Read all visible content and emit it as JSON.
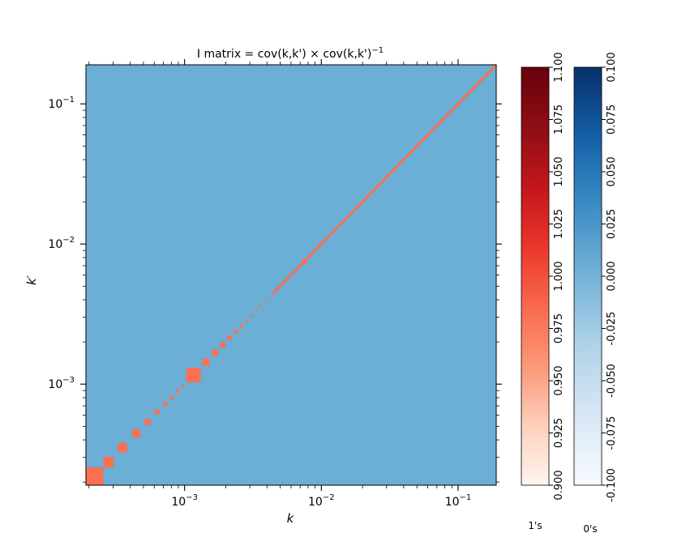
{
  "chart_data": {
    "type": "heatmap",
    "title": "I matrix = cov(k,k') × cov(k,k')",
    "title_superscript": "−1",
    "xlabel": "k",
    "ylabel": "k′",
    "x_scale": "log",
    "y_scale": "log",
    "xlim": [
      0.00019,
      0.19
    ],
    "ylim": [
      0.00019,
      0.19
    ],
    "x_tick_labels": [
      {
        "value": 0.001,
        "base": "10",
        "exp": "−3"
      },
      {
        "value": 0.01,
        "base": "10",
        "exp": "−2"
      },
      {
        "value": 0.1,
        "base": "10",
        "exp": "−1"
      }
    ],
    "y_tick_labels": [
      {
        "value": 0.001,
        "base": "10",
        "exp": "−3"
      },
      {
        "value": 0.01,
        "base": "10",
        "exp": "−2"
      },
      {
        "value": 0.1,
        "base": "10",
        "exp": "−1"
      }
    ],
    "background_color": "#6baed6",
    "diagonal_color": "#fb7050",
    "diagonal_bins": [
      [
        0.00019,
        0.000255
      ],
      [
        0.000255,
        0.000303
      ],
      [
        0.000325,
        0.00038
      ],
      [
        0.000415,
        0.000475
      ],
      [
        0.00051,
        0.000565
      ],
      [
        0.000605,
        0.000655
      ],
      [
        0.000695,
        0.000745
      ],
      [
        0.00078,
        0.00083
      ],
      [
        0.000865,
        0.000915
      ],
      [
        0.00095,
        0.00099
      ],
      [
        0.00103,
        0.00131
      ],
      [
        0.00135,
        0.00152
      ],
      [
        0.00159,
        0.00176
      ],
      [
        0.00182,
        0.00199
      ],
      [
        0.00206,
        0.00222
      ],
      [
        0.0023,
        0.00245
      ],
      [
        0.00253,
        0.00267
      ],
      [
        0.00277,
        0.0029
      ],
      [
        0.00301,
        0.00314
      ],
      [
        0.00327,
        0.00339
      ],
      [
        0.00352,
        0.00364
      ],
      [
        0.00378,
        0.00389
      ],
      [
        0.00405,
        0.00415
      ],
      [
        0.00435,
        0.00445
      ],
      [
        0.0072,
        0.0078
      ],
      [
        0.0095,
        0.0101
      ]
    ],
    "colorbars": [
      {
        "label": "1's",
        "cmap": "Reds",
        "vmin": 0.9,
        "vmax": 1.1,
        "tick_values": [
          0.9,
          0.925,
          0.95,
          0.975,
          1.0,
          1.025,
          1.05,
          1.075,
          1.1
        ],
        "tick_labels": [
          "0.900",
          "0.925",
          "0.950",
          "0.975",
          "1.000",
          "1.025",
          "1.050",
          "1.075",
          "1.100"
        ],
        "colors": [
          "#fff5f0",
          "#fdd0bc",
          "#fc9777",
          "#f9694c",
          "#ea362a",
          "#c2161b",
          "#8e0d14",
          "#67000d"
        ]
      },
      {
        "label": "0's",
        "cmap": "Blues",
        "vmin": -0.1,
        "vmax": 0.1,
        "tick_values": [
          -0.1,
          -0.075,
          -0.05,
          -0.025,
          0.0,
          0.025,
          0.05,
          0.075,
          0.1
        ],
        "tick_labels": [
          "-0.100",
          "-0.075",
          "-0.050",
          "-0.025",
          "0.000",
          "0.025",
          "0.050",
          "0.075",
          "0.100"
        ],
        "colors": [
          "#f7fbff",
          "#d8e7f5",
          "#b0d2e7",
          "#73b2d8",
          "#3d8dc4",
          "#1560a8",
          "#08306b"
        ]
      }
    ]
  }
}
